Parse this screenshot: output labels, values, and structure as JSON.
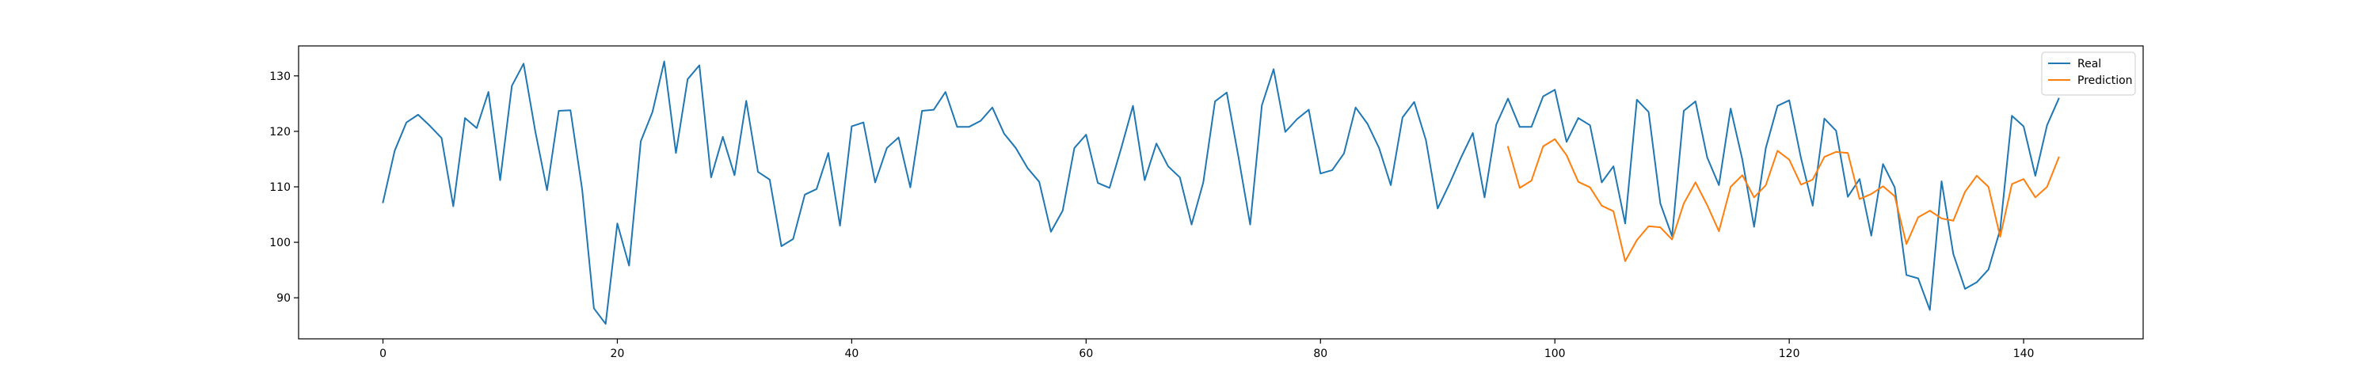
{
  "chart_data": {
    "type": "line",
    "title": "",
    "xlabel": "",
    "ylabel": "",
    "xlim": [
      -7.2,
      150.2
    ],
    "ylim": [
      82.6,
      135.4
    ],
    "xticks": [
      0,
      20,
      40,
      60,
      80,
      100,
      120,
      140
    ],
    "yticks": [
      90,
      100,
      110,
      120,
      130
    ],
    "grid": false,
    "legend_position": "top-right",
    "series": [
      {
        "name": "Real",
        "color": "#1f77b4",
        "x_start": 0,
        "values": [
          107.2,
          116.5,
          121.6,
          123.0,
          121.0,
          118.8,
          106.5,
          122.4,
          120.6,
          127.1,
          111.2,
          128.2,
          132.2,
          120.0,
          109.4,
          123.7,
          123.8,
          109.5,
          88.1,
          85.3,
          103.4,
          95.8,
          118.2,
          123.5,
          132.6,
          116.1,
          129.4,
          131.9,
          111.7,
          119.0,
          112.1,
          125.5,
          112.7,
          111.3,
          99.3,
          100.6,
          108.6,
          109.6,
          116.1,
          103.0,
          120.9,
          121.6,
          110.8,
          117.0,
          118.9,
          109.9,
          123.7,
          123.9,
          127.1,
          120.8,
          120.8,
          121.9,
          124.3,
          119.6,
          117.0,
          113.4,
          110.9,
          101.9,
          105.7,
          117.0,
          119.4,
          110.7,
          109.8,
          117.0,
          124.6,
          111.2,
          117.8,
          113.7,
          111.7,
          103.2,
          110.8,
          125.4,
          127.0,
          115.4,
          103.2,
          124.7,
          131.2,
          119.9,
          122.2,
          123.9,
          112.4,
          113.0,
          116.0,
          124.3,
          121.4,
          117.0,
          110.3,
          122.5,
          125.3,
          118.4,
          106.1,
          110.5,
          115.3,
          119.7,
          108.1,
          121.2,
          125.9,
          120.8,
          120.8,
          126.3,
          127.5,
          118.1,
          122.4,
          121.1,
          110.8,
          113.7,
          103.4,
          125.7,
          123.5,
          107.0,
          101.1,
          123.7,
          125.4,
          115.3,
          110.3,
          124.1,
          114.9,
          102.8,
          117.0,
          124.6,
          125.6,
          115.2,
          106.6,
          122.3,
          120.1,
          108.2,
          111.4,
          101.2,
          114.1,
          109.9,
          94.1,
          93.5,
          87.8,
          111.0,
          97.9,
          91.6,
          92.8,
          95.1,
          102.3,
          122.8,
          120.9,
          112.0,
          121.1,
          125.9
        ]
      },
      {
        "name": "Prediction",
        "color": "#ff7f0e",
        "x_start": 96,
        "values": [
          117.2,
          109.8,
          111.1,
          117.3,
          118.6,
          115.7,
          110.9,
          109.9,
          106.6,
          105.6,
          96.6,
          100.4,
          102.9,
          102.7,
          100.5,
          107.0,
          110.8,
          106.7,
          102.0,
          110.0,
          112.1,
          108.1,
          110.3,
          116.5,
          114.9,
          110.4,
          111.3,
          115.4,
          116.3,
          116.1,
          107.8,
          108.7,
          110.1,
          108.3,
          99.7,
          104.5,
          105.7,
          104.3,
          103.9,
          109.1,
          112.0,
          110.0,
          101.0,
          110.5,
          111.4,
          108.1,
          110.0,
          115.3
        ]
      }
    ]
  }
}
